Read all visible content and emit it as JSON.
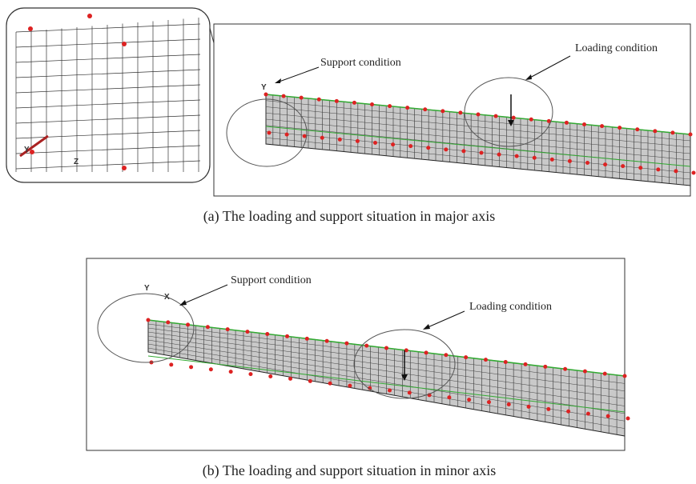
{
  "panels": [
    {
      "inset_axis_labels": [
        "Y",
        "Z"
      ],
      "axis_labels": [
        "Y"
      ],
      "support_label": "Support condition",
      "loading_label": "Loading condition",
      "caption": "(a) The loading and support situation in major axis"
    },
    {
      "axis_labels": [
        "Y",
        "X"
      ],
      "support_label": "Support condition",
      "loading_label": "Loading condition",
      "caption": "(b) The loading and support situation in minor axis"
    }
  ]
}
